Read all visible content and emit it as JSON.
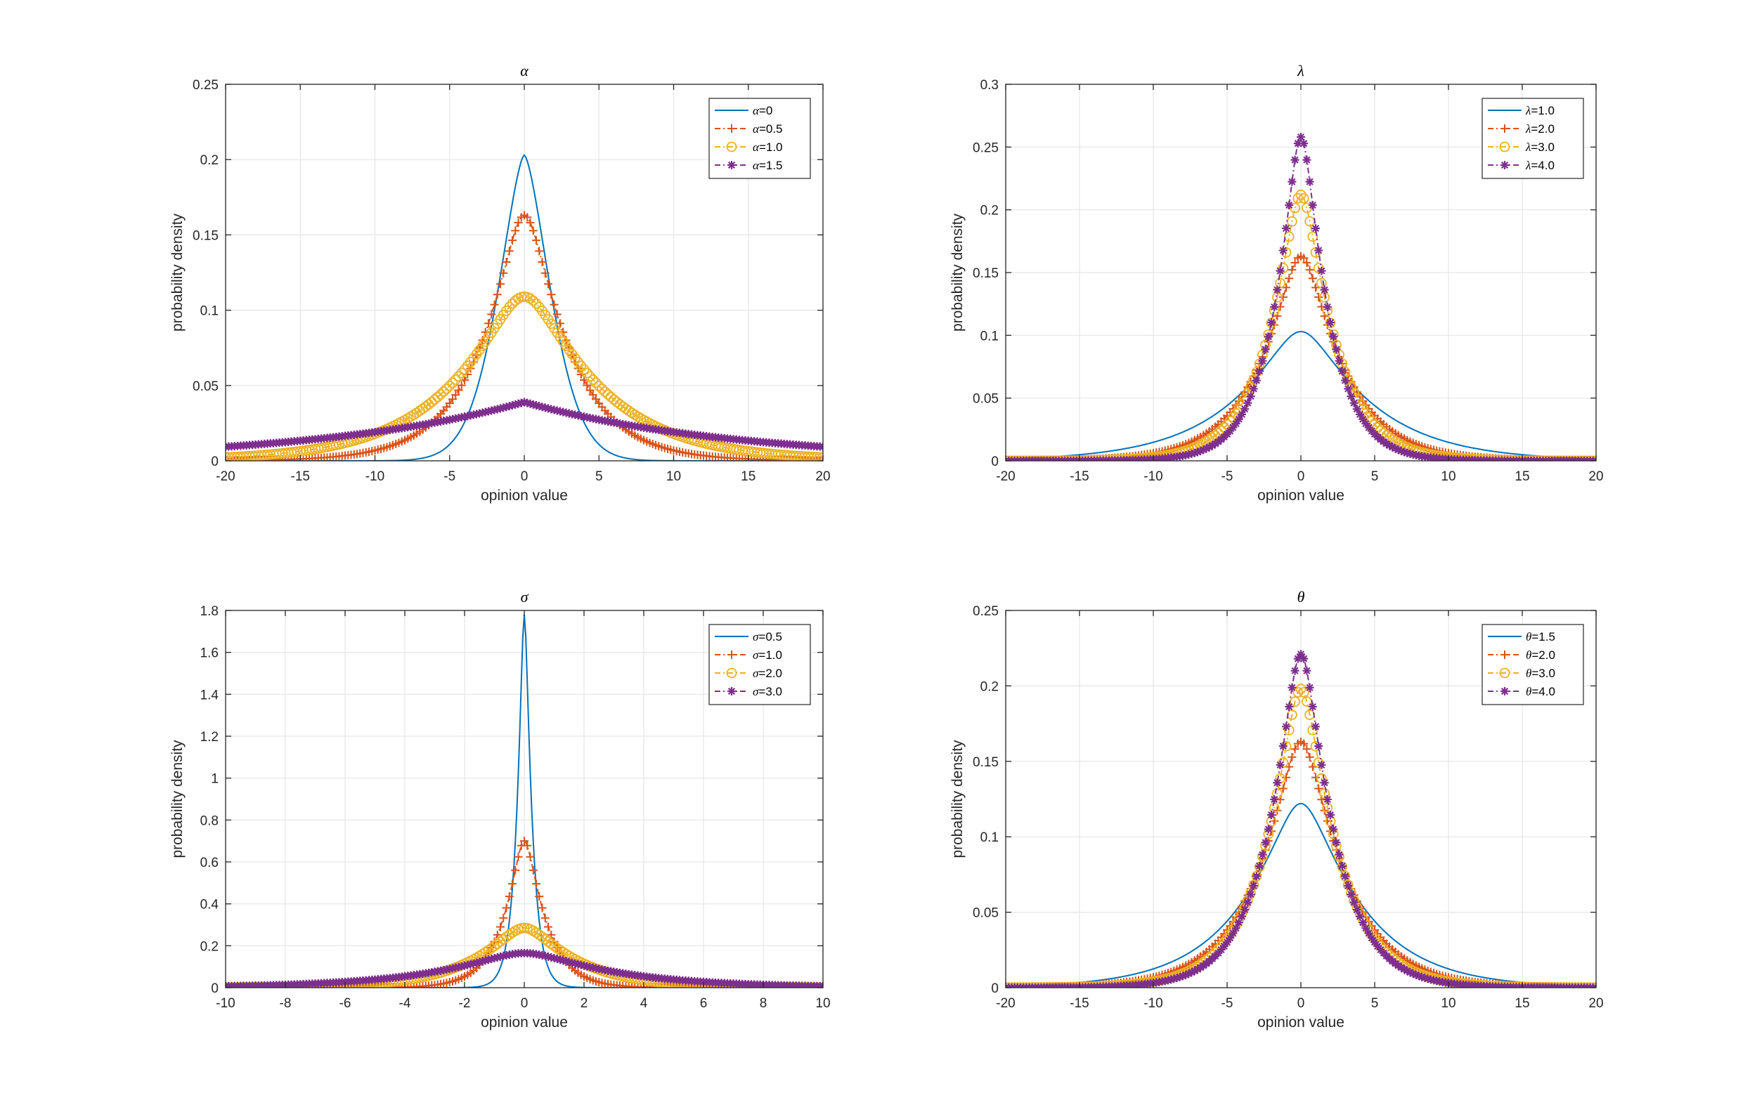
{
  "figure": {
    "colors": {
      "s1": "#0072BD",
      "s2": "#D95319",
      "s3": "#EDB120",
      "s4": "#7E2F8E",
      "grid": "#e6e6e6",
      "axis": "#262626"
    }
  },
  "chart_data": [
    {
      "type": "line",
      "title": "α",
      "xlabel": "opinion value",
      "ylabel": "probability density",
      "xlim": [
        -20,
        20
      ],
      "ylim": [
        0,
        0.25
      ],
      "xticks": [
        -20,
        -15,
        -10,
        -5,
        0,
        5,
        10,
        15,
        20
      ],
      "xtick_labels": [
        "-20",
        "-15",
        "-10",
        "-5",
        "0",
        "5",
        "10",
        "15",
        "20"
      ],
      "yticks": [
        0,
        0.05,
        0.1,
        0.15,
        0.2,
        0.25
      ],
      "ytick_labels": [
        "0",
        "0.05",
        "0.1",
        "0.15",
        "0.2",
        "0.25"
      ],
      "grid": true,
      "legend_position": "top-right",
      "series": [
        {
          "symbol": "α",
          "value": "=0",
          "name": "α=0",
          "marker": "none",
          "color": "#0072BD",
          "peak": 0.203,
          "scale": 2.5,
          "shape": "gauss-flat"
        },
        {
          "symbol": "α",
          "value": "=0.5",
          "name": "α=0.5",
          "marker": "plus",
          "color": "#D95319",
          "peak": 0.163,
          "scale": 2.9,
          "shape": "laplace-round"
        },
        {
          "symbol": "α",
          "value": "=1.0",
          "name": "α=1.0",
          "marker": "circle",
          "color": "#EDB120",
          "peak": 0.109,
          "scale": 4.8,
          "shape": "laplace-round"
        },
        {
          "symbol": "α",
          "value": "=1.5",
          "name": "α=1.5",
          "marker": "asterisk",
          "color": "#7E2F8E",
          "peak": 0.039,
          "scale": 14,
          "shape": "laplace"
        }
      ]
    },
    {
      "type": "line",
      "title": "λ",
      "xlabel": "opinion value",
      "ylabel": "probability density",
      "xlim": [
        -20,
        20
      ],
      "ylim": [
        0,
        0.3
      ],
      "xticks": [
        -20,
        -15,
        -10,
        -5,
        0,
        5,
        10,
        15,
        20
      ],
      "xtick_labels": [
        "-20",
        "-15",
        "-10",
        "-5",
        "0",
        "5",
        "10",
        "15",
        "20"
      ],
      "yticks": [
        0,
        0.05,
        0.1,
        0.15,
        0.2,
        0.25,
        0.3
      ],
      "ytick_labels": [
        "0",
        "0.05",
        "0.1",
        "0.15",
        "0.2",
        "0.25",
        "0.3"
      ],
      "grid": true,
      "legend_position": "top-right",
      "series": [
        {
          "symbol": "λ",
          "value": "=1.0",
          "name": "λ=1.0",
          "marker": "none",
          "color": "#0072BD",
          "peak": 0.103,
          "scale": 4.5,
          "shape": "laplace-round"
        },
        {
          "symbol": "λ",
          "value": "=2.0",
          "name": "λ=2.0",
          "marker": "plus",
          "color": "#D95319",
          "peak": 0.163,
          "scale": 2.8,
          "shape": "laplace-round"
        },
        {
          "symbol": "λ",
          "value": "=3.0",
          "name": "λ=3.0",
          "marker": "circle",
          "color": "#EDB120",
          "peak": 0.212,
          "scale": 2.2,
          "shape": "laplace-round"
        },
        {
          "symbol": "λ",
          "value": "=4.0",
          "name": "λ=4.0",
          "marker": "asterisk",
          "color": "#7E2F8E",
          "peak": 0.258,
          "scale": 1.8,
          "shape": "laplace-round"
        }
      ]
    },
    {
      "type": "line",
      "title": "σ",
      "xlabel": "opinion value",
      "ylabel": "probability density",
      "xlim": [
        -10,
        10
      ],
      "ylim": [
        0,
        1.8
      ],
      "xticks": [
        -10,
        -8,
        -6,
        -4,
        -2,
        0,
        2,
        4,
        6,
        8,
        10
      ],
      "xtick_labels": [
        "-10",
        "-8",
        "-6",
        "-4",
        "-2",
        "0",
        "2",
        "4",
        "6",
        "8",
        "10"
      ],
      "yticks": [
        0,
        0.2,
        0.4,
        0.6,
        0.8,
        1,
        1.2,
        1.4,
        1.6,
        1.8
      ],
      "ytick_labels": [
        "0",
        "0.2",
        "0.4",
        "0.6",
        "0.8",
        "1",
        "1.2",
        "1.4",
        "1.6",
        "1.8"
      ],
      "grid": true,
      "legend_position": "top-right",
      "series": [
        {
          "symbol": "σ",
          "value": "=0.5",
          "name": "σ=0.5",
          "marker": "none",
          "color": "#0072BD",
          "peak": 1.78,
          "scale": 0.25,
          "shape": "laplace-round"
        },
        {
          "symbol": "σ",
          "value": "=1.0",
          "name": "σ=1.0",
          "marker": "plus",
          "color": "#D95319",
          "peak": 0.7,
          "scale": 0.7,
          "shape": "laplace-round"
        },
        {
          "symbol": "σ",
          "value": "=2.0",
          "name": "σ=2.0",
          "marker": "circle",
          "color": "#EDB120",
          "peak": 0.285,
          "scale": 1.7,
          "shape": "laplace-round"
        },
        {
          "symbol": "σ",
          "value": "=3.0",
          "name": "σ=3.0",
          "marker": "asterisk",
          "color": "#7E2F8E",
          "peak": 0.165,
          "scale": 2.9,
          "shape": "laplace-round"
        }
      ]
    },
    {
      "type": "line",
      "title": "θ",
      "xlabel": "opinion value",
      "ylabel": "probability density",
      "xlim": [
        -20,
        20
      ],
      "ylim": [
        0,
        0.25
      ],
      "xticks": [
        -20,
        -15,
        -10,
        -5,
        0,
        5,
        10,
        15,
        20
      ],
      "xtick_labels": [
        "-20",
        "-15",
        "-10",
        "-5",
        "0",
        "5",
        "10",
        "15",
        "20"
      ],
      "yticks": [
        0,
        0.05,
        0.1,
        0.15,
        0.2,
        0.25
      ],
      "ytick_labels": [
        "0",
        "0.05",
        "0.1",
        "0.15",
        "0.2",
        "0.25"
      ],
      "grid": true,
      "legend_position": "top-right",
      "series": [
        {
          "symbol": "θ",
          "value": "=1.5",
          "name": "θ=1.5",
          "marker": "none",
          "color": "#0072BD",
          "peak": 0.122,
          "scale": 3.9,
          "shape": "laplace-round"
        },
        {
          "symbol": "θ",
          "value": "=2.0",
          "name": "θ=2.0",
          "marker": "plus",
          "color": "#D95319",
          "peak": 0.163,
          "scale": 2.9,
          "shape": "laplace-round"
        },
        {
          "symbol": "θ",
          "value": "=3.0",
          "name": "θ=3.0",
          "marker": "circle",
          "color": "#EDB120",
          "peak": 0.198,
          "scale": 2.4,
          "shape": "laplace-round"
        },
        {
          "symbol": "θ",
          "value": "=4.0",
          "name": "θ=4.0",
          "marker": "asterisk",
          "color": "#7E2F8E",
          "peak": 0.221,
          "scale": 2.2,
          "shape": "laplace-round"
        }
      ]
    }
  ]
}
